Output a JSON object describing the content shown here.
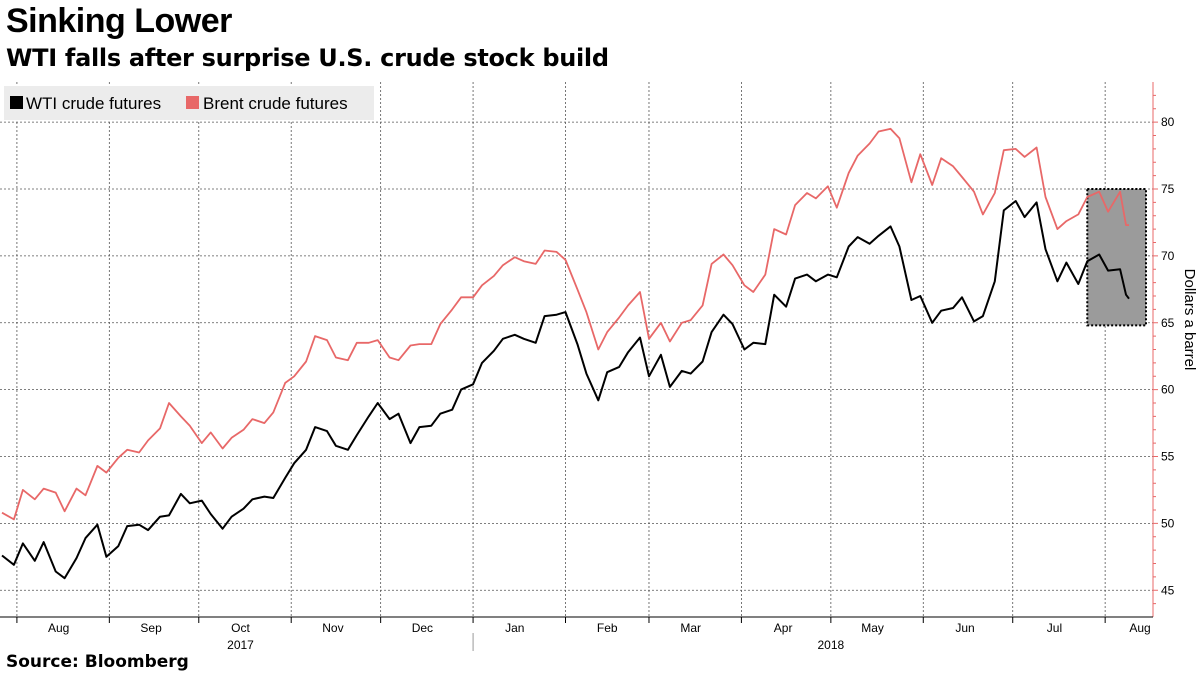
{
  "title": "Sinking Lower",
  "subtitle": "WTI falls after surprise U.S. crude stock build",
  "source": "Source: Bloomberg",
  "chart_data": {
    "type": "line",
    "ylabel": "Dollars a barrel",
    "ylim": [
      43,
      83
    ],
    "yticks": [
      45,
      50,
      55,
      60,
      65,
      70,
      75,
      80
    ],
    "grid": true,
    "legend_position": "top-left",
    "x_range": [
      "2017-07-27",
      "2018-08-09"
    ],
    "month_ticks": [
      {
        "label": "Aug",
        "date": "2017-08-15"
      },
      {
        "label": "Sep",
        "date": "2017-09-15"
      },
      {
        "label": "Oct",
        "date": "2017-10-15"
      },
      {
        "label": "Nov",
        "date": "2017-11-15"
      },
      {
        "label": "Dec",
        "date": "2017-12-15"
      },
      {
        "label": "Jan",
        "date": "2018-01-15"
      },
      {
        "label": "Feb",
        "date": "2018-02-15"
      },
      {
        "label": "Mar",
        "date": "2018-03-15"
      },
      {
        "label": "Apr",
        "date": "2018-04-15"
      },
      {
        "label": "May",
        "date": "2018-05-15"
      },
      {
        "label": "Jun",
        "date": "2018-06-15"
      },
      {
        "label": "Jul",
        "date": "2018-07-15"
      },
      {
        "label": "Aug",
        "date": "2018-08-15"
      }
    ],
    "year_labels": [
      {
        "label": "2017",
        "date": "2017-10-15"
      },
      {
        "label": "2018",
        "date": "2018-05-01"
      }
    ],
    "highlight_box": {
      "x_start": "2018-07-25",
      "x_end": "2018-08-09",
      "y_low": 64.8,
      "y_high": 75.0,
      "color": "#9b9b9b"
    },
    "series": [
      {
        "name": "WTI crude futures",
        "color": "#000000",
        "points": [
          [
            "2017-07-27",
            47.6
          ],
          [
            "2017-07-31",
            46.9
          ],
          [
            "2017-08-03",
            48.5
          ],
          [
            "2017-08-07",
            47.2
          ],
          [
            "2017-08-10",
            48.6
          ],
          [
            "2017-08-14",
            46.4
          ],
          [
            "2017-08-17",
            45.9
          ],
          [
            "2017-08-21",
            47.4
          ],
          [
            "2017-08-24",
            48.9
          ],
          [
            "2017-08-28",
            49.9
          ],
          [
            "2017-08-31",
            47.5
          ],
          [
            "2017-09-04",
            48.3
          ],
          [
            "2017-09-07",
            49.8
          ],
          [
            "2017-09-11",
            49.9
          ],
          [
            "2017-09-14",
            49.5
          ],
          [
            "2017-09-18",
            50.5
          ],
          [
            "2017-09-21",
            50.6
          ],
          [
            "2017-09-25",
            52.2
          ],
          [
            "2017-09-28",
            51.5
          ],
          [
            "2017-10-02",
            51.7
          ],
          [
            "2017-10-05",
            50.7
          ],
          [
            "2017-10-09",
            49.6
          ],
          [
            "2017-10-12",
            50.5
          ],
          [
            "2017-10-16",
            51.1
          ],
          [
            "2017-10-19",
            51.8
          ],
          [
            "2017-10-23",
            52.0
          ],
          [
            "2017-10-26",
            51.9
          ],
          [
            "2017-10-30",
            53.4
          ],
          [
            "2017-11-02",
            54.5
          ],
          [
            "2017-11-06",
            55.5
          ],
          [
            "2017-11-09",
            57.2
          ],
          [
            "2017-11-13",
            56.9
          ],
          [
            "2017-11-16",
            55.8
          ],
          [
            "2017-11-20",
            55.5
          ],
          [
            "2017-11-23",
            56.6
          ],
          [
            "2017-11-27",
            58.0
          ],
          [
            "2017-11-30",
            59.0
          ],
          [
            "2017-12-04",
            57.8
          ],
          [
            "2017-12-07",
            58.2
          ],
          [
            "2017-12-11",
            56.0
          ],
          [
            "2017-12-14",
            57.2
          ],
          [
            "2017-12-18",
            57.3
          ],
          [
            "2017-12-21",
            58.2
          ],
          [
            "2017-12-25",
            58.5
          ],
          [
            "2017-12-28",
            60.0
          ],
          [
            "2018-01-01",
            60.4
          ],
          [
            "2018-01-04",
            62.0
          ],
          [
            "2018-01-08",
            62.9
          ],
          [
            "2018-01-11",
            63.8
          ],
          [
            "2018-01-15",
            64.1
          ],
          [
            "2018-01-18",
            63.8
          ],
          [
            "2018-01-22",
            63.5
          ],
          [
            "2018-01-25",
            65.5
          ],
          [
            "2018-01-29",
            65.6
          ],
          [
            "2018-02-01",
            65.8
          ],
          [
            "2018-02-05",
            63.4
          ],
          [
            "2018-02-08",
            61.2
          ],
          [
            "2018-02-12",
            59.2
          ],
          [
            "2018-02-15",
            61.3
          ],
          [
            "2018-02-19",
            61.7
          ],
          [
            "2018-02-22",
            62.8
          ],
          [
            "2018-02-26",
            63.9
          ],
          [
            "2018-03-01",
            61.0
          ],
          [
            "2018-03-05",
            62.6
          ],
          [
            "2018-03-08",
            60.2
          ],
          [
            "2018-03-12",
            61.4
          ],
          [
            "2018-03-15",
            61.2
          ],
          [
            "2018-03-19",
            62.1
          ],
          [
            "2018-03-22",
            64.3
          ],
          [
            "2018-03-26",
            65.6
          ],
          [
            "2018-03-29",
            64.9
          ],
          [
            "2018-04-02",
            63.0
          ],
          [
            "2018-04-05",
            63.5
          ],
          [
            "2018-04-09",
            63.4
          ],
          [
            "2018-04-12",
            67.1
          ],
          [
            "2018-04-16",
            66.2
          ],
          [
            "2018-04-19",
            68.3
          ],
          [
            "2018-04-23",
            68.6
          ],
          [
            "2018-04-26",
            68.1
          ],
          [
            "2018-04-30",
            68.6
          ],
          [
            "2018-05-03",
            68.4
          ],
          [
            "2018-05-07",
            70.7
          ],
          [
            "2018-05-10",
            71.4
          ],
          [
            "2018-05-14",
            70.9
          ],
          [
            "2018-05-17",
            71.5
          ],
          [
            "2018-05-21",
            72.2
          ],
          [
            "2018-05-24",
            70.7
          ],
          [
            "2018-05-28",
            66.7
          ],
          [
            "2018-05-31",
            67.0
          ],
          [
            "2018-06-04",
            65.0
          ],
          [
            "2018-06-07",
            65.9
          ],
          [
            "2018-06-11",
            66.1
          ],
          [
            "2018-06-14",
            66.9
          ],
          [
            "2018-06-18",
            65.1
          ],
          [
            "2018-06-21",
            65.5
          ],
          [
            "2018-06-25",
            68.1
          ],
          [
            "2018-06-28",
            73.4
          ],
          [
            "2018-07-02",
            74.1
          ],
          [
            "2018-07-05",
            72.9
          ],
          [
            "2018-07-09",
            74.0
          ],
          [
            "2018-07-12",
            70.5
          ],
          [
            "2018-07-16",
            68.1
          ],
          [
            "2018-07-19",
            69.5
          ],
          [
            "2018-07-23",
            67.9
          ],
          [
            "2018-07-26",
            69.6
          ],
          [
            "2018-07-30",
            70.1
          ],
          [
            "2018-08-02",
            68.9
          ],
          [
            "2018-08-06",
            69.0
          ],
          [
            "2018-08-08",
            67.1
          ],
          [
            "2018-08-09",
            66.8
          ]
        ]
      },
      {
        "name": "Brent crude futures",
        "color": "#e86868",
        "points": [
          [
            "2017-07-27",
            50.8
          ],
          [
            "2017-07-31",
            50.3
          ],
          [
            "2017-08-03",
            52.5
          ],
          [
            "2017-08-07",
            51.8
          ],
          [
            "2017-08-10",
            52.6
          ],
          [
            "2017-08-14",
            52.3
          ],
          [
            "2017-08-17",
            50.9
          ],
          [
            "2017-08-21",
            52.6
          ],
          [
            "2017-08-24",
            52.1
          ],
          [
            "2017-08-28",
            54.3
          ],
          [
            "2017-08-31",
            53.8
          ],
          [
            "2017-09-04",
            54.9
          ],
          [
            "2017-09-07",
            55.5
          ],
          [
            "2017-09-11",
            55.3
          ],
          [
            "2017-09-14",
            56.2
          ],
          [
            "2017-09-18",
            57.1
          ],
          [
            "2017-09-21",
            59.0
          ],
          [
            "2017-09-25",
            58.0
          ],
          [
            "2017-09-28",
            57.3
          ],
          [
            "2017-10-02",
            56.0
          ],
          [
            "2017-10-05",
            56.8
          ],
          [
            "2017-10-09",
            55.6
          ],
          [
            "2017-10-12",
            56.4
          ],
          [
            "2017-10-16",
            57.0
          ],
          [
            "2017-10-19",
            57.8
          ],
          [
            "2017-10-23",
            57.5
          ],
          [
            "2017-10-26",
            58.3
          ],
          [
            "2017-10-30",
            60.5
          ],
          [
            "2017-11-02",
            61.0
          ],
          [
            "2017-11-06",
            62.1
          ],
          [
            "2017-11-09",
            64.0
          ],
          [
            "2017-11-13",
            63.7
          ],
          [
            "2017-11-16",
            62.4
          ],
          [
            "2017-11-20",
            62.2
          ],
          [
            "2017-11-23",
            63.5
          ],
          [
            "2017-11-27",
            63.5
          ],
          [
            "2017-11-30",
            63.7
          ],
          [
            "2017-12-04",
            62.4
          ],
          [
            "2017-12-07",
            62.2
          ],
          [
            "2017-12-11",
            63.3
          ],
          [
            "2017-12-14",
            63.4
          ],
          [
            "2017-12-18",
            63.4
          ],
          [
            "2017-12-21",
            64.9
          ],
          [
            "2017-12-25",
            66.0
          ],
          [
            "2017-12-28",
            66.9
          ],
          [
            "2018-01-01",
            66.9
          ],
          [
            "2018-01-04",
            67.8
          ],
          [
            "2018-01-08",
            68.5
          ],
          [
            "2018-01-11",
            69.3
          ],
          [
            "2018-01-15",
            69.9
          ],
          [
            "2018-01-18",
            69.6
          ],
          [
            "2018-01-22",
            69.4
          ],
          [
            "2018-01-25",
            70.4
          ],
          [
            "2018-01-29",
            70.3
          ],
          [
            "2018-02-01",
            69.7
          ],
          [
            "2018-02-05",
            67.5
          ],
          [
            "2018-02-08",
            65.8
          ],
          [
            "2018-02-12",
            63.0
          ],
          [
            "2018-02-15",
            64.3
          ],
          [
            "2018-02-19",
            65.4
          ],
          [
            "2018-02-22",
            66.3
          ],
          [
            "2018-02-26",
            67.3
          ],
          [
            "2018-03-01",
            63.8
          ],
          [
            "2018-03-05",
            65.0
          ],
          [
            "2018-03-08",
            63.6
          ],
          [
            "2018-03-12",
            65.0
          ],
          [
            "2018-03-15",
            65.2
          ],
          [
            "2018-03-19",
            66.3
          ],
          [
            "2018-03-22",
            69.4
          ],
          [
            "2018-03-26",
            70.1
          ],
          [
            "2018-03-29",
            69.3
          ],
          [
            "2018-04-02",
            67.8
          ],
          [
            "2018-04-05",
            67.3
          ],
          [
            "2018-04-09",
            68.6
          ],
          [
            "2018-04-12",
            72.0
          ],
          [
            "2018-04-16",
            71.6
          ],
          [
            "2018-04-19",
            73.8
          ],
          [
            "2018-04-23",
            74.7
          ],
          [
            "2018-04-26",
            74.3
          ],
          [
            "2018-04-30",
            75.2
          ],
          [
            "2018-05-03",
            73.6
          ],
          [
            "2018-05-07",
            76.2
          ],
          [
            "2018-05-10",
            77.5
          ],
          [
            "2018-05-14",
            78.4
          ],
          [
            "2018-05-17",
            79.3
          ],
          [
            "2018-05-21",
            79.5
          ],
          [
            "2018-05-24",
            78.8
          ],
          [
            "2018-05-28",
            75.5
          ],
          [
            "2018-05-31",
            77.6
          ],
          [
            "2018-06-04",
            75.3
          ],
          [
            "2018-06-07",
            77.3
          ],
          [
            "2018-06-11",
            76.7
          ],
          [
            "2018-06-14",
            75.9
          ],
          [
            "2018-06-18",
            74.8
          ],
          [
            "2018-06-21",
            73.1
          ],
          [
            "2018-06-25",
            74.7
          ],
          [
            "2018-06-28",
            77.9
          ],
          [
            "2018-07-02",
            78.0
          ],
          [
            "2018-07-05",
            77.4
          ],
          [
            "2018-07-09",
            78.1
          ],
          [
            "2018-07-12",
            74.4
          ],
          [
            "2018-07-16",
            72.0
          ],
          [
            "2018-07-19",
            72.6
          ],
          [
            "2018-07-23",
            73.1
          ],
          [
            "2018-07-26",
            74.4
          ],
          [
            "2018-07-30",
            74.8
          ],
          [
            "2018-08-02",
            73.3
          ],
          [
            "2018-08-06",
            74.8
          ],
          [
            "2018-08-08",
            72.3
          ],
          [
            "2018-08-09",
            72.3
          ]
        ]
      }
    ]
  }
}
